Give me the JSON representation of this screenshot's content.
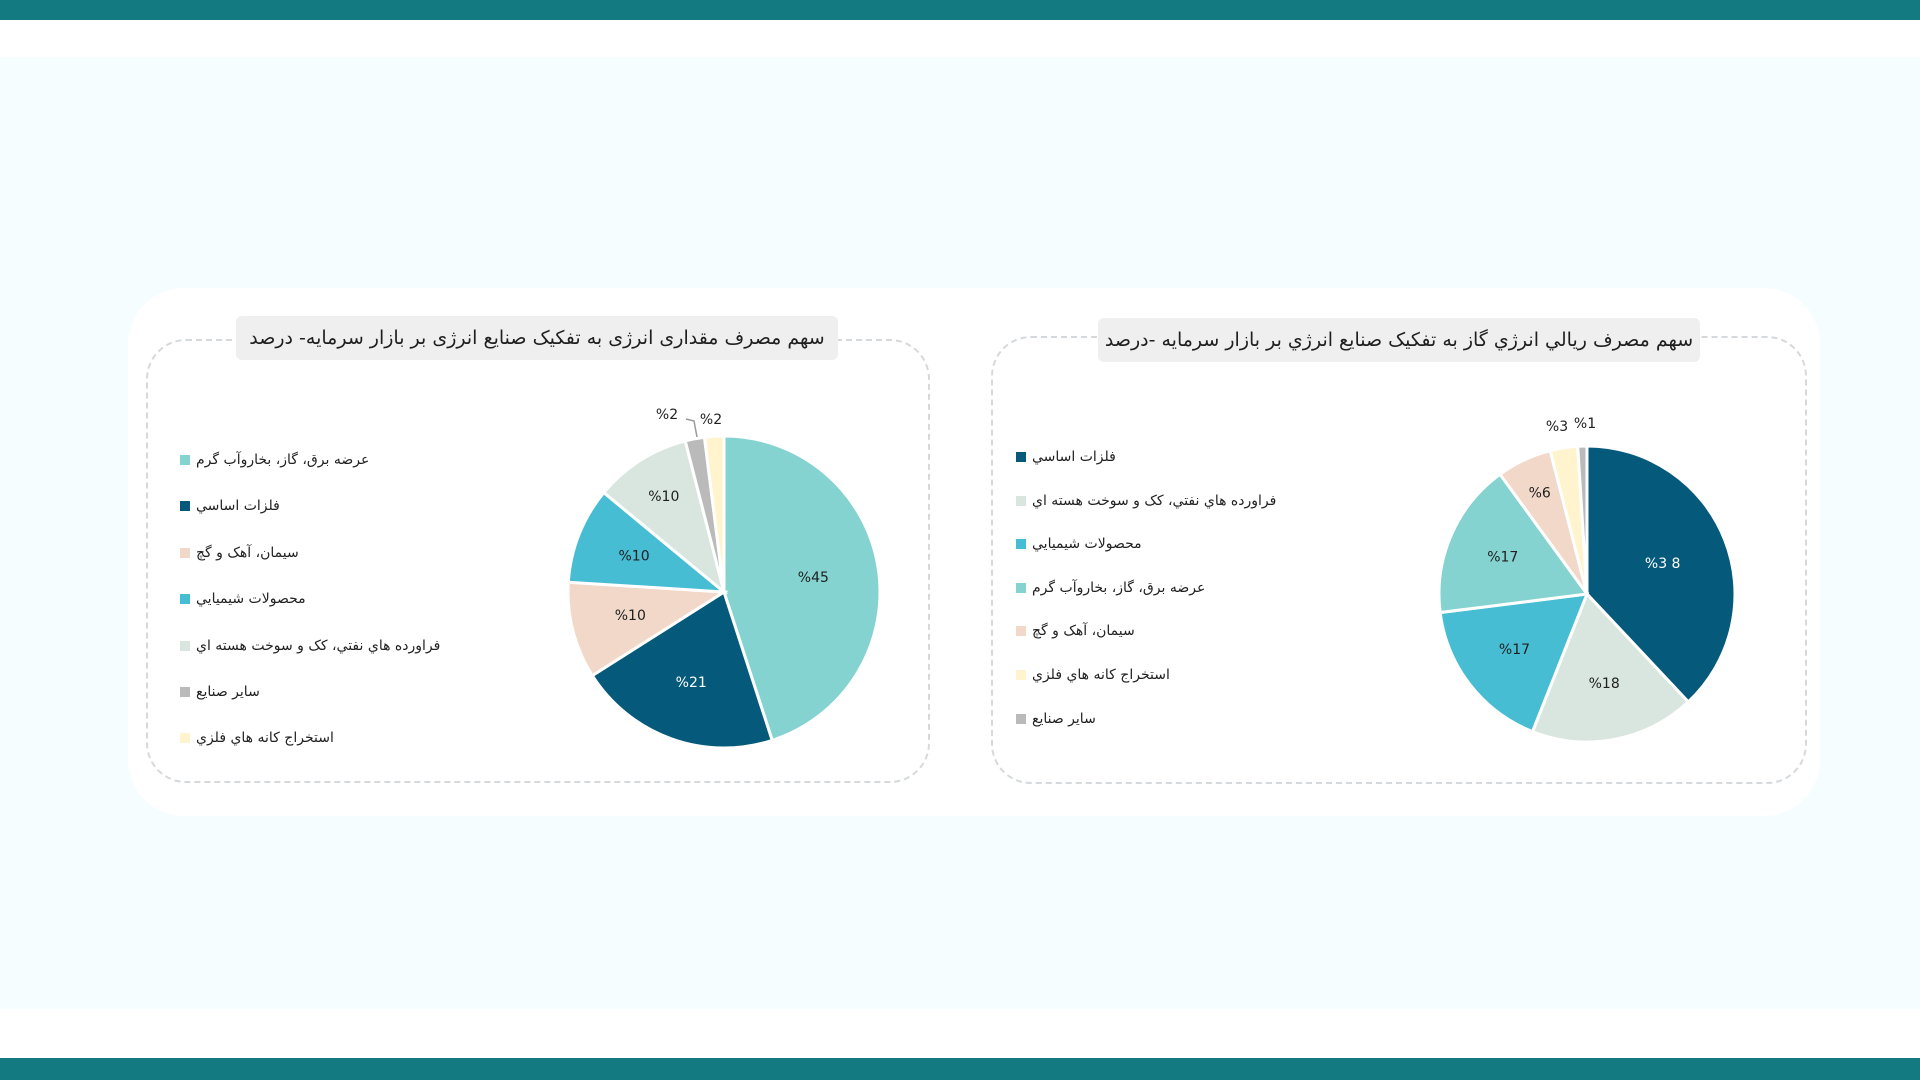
{
  "chart_data": [
    {
      "type": "pie",
      "title": "سهم مصرف مقداری انرژی به تفکیک صنایع انرژی بر بازار سرمایه- درصد",
      "legend_position": "left",
      "slices": [
        {
          "label": "عرضه برق، گاز، بخاروآب گرم",
          "value": 45,
          "display": "%45",
          "color": "#84D3D0"
        },
        {
          "label": "فلزات اساسي",
          "value": 21,
          "display": "%21",
          "color": "#055A7C"
        },
        {
          "label": "سيمان، آهک و گچ",
          "value": 10,
          "display": "%10",
          "color": "#F2D8C9"
        },
        {
          "label": "محصولات شيميايي",
          "value": 10,
          "display": "%10",
          "color": "#47BDD3"
        },
        {
          "label": "فراورده هاي نفتي، کک و سوخت هسته اي",
          "value": 10,
          "display": "%10",
          "color": "#D9E6DF"
        },
        {
          "label": "ساير صنايع",
          "value": 2,
          "display": "%2",
          "color": "#BABABA"
        },
        {
          "label": "استخراج کانه هاي فلزي",
          "value": 2,
          "display": "%2",
          "color": "#FFF4CE"
        }
      ]
    },
    {
      "type": "pie",
      "title": "سهم مصرف ريالي انرژي گاز به تفکيک صنايع انرژي بر بازار سرمايه -درصد",
      "legend_position": "left",
      "slices": [
        {
          "label": "فلزات اساسي",
          "value": 38,
          "display": "%3 8",
          "color": "#055A7C"
        },
        {
          "label": "فراورده هاي نفتي، کک و سوخت هسته اي",
          "value": 18,
          "display": "%18",
          "color": "#D9E6DF"
        },
        {
          "label": "محصولات شيميايي",
          "value": 17,
          "display": "%17",
          "color": "#47BDD3"
        },
        {
          "label": "عرضه برق، گاز، بخاروآب گرم",
          "value": 17,
          "display": "%17",
          "color": "#84D3D0"
        },
        {
          "label": "سيمان، آهک و گچ",
          "value": 6,
          "display": "%6",
          "color": "#F2D8C9"
        },
        {
          "label": "استخراج کانه هاي فلزي",
          "value": 3,
          "display": "%3",
          "color": "#FFF4CE"
        },
        {
          "label": "ساير صنايع",
          "value": 1,
          "display": "%1",
          "color": "#BABABA"
        }
      ]
    }
  ],
  "legends": [
    [
      {
        "label": "عرضه برق، گاز، بخاروآب گرم",
        "color": "#84D3D0"
      },
      {
        "label": "فلزات اساسي",
        "color": "#055A7C"
      },
      {
        "label": "سيمان، آهک و گچ",
        "color": "#F2D8C9"
      },
      {
        "label": "محصولات شيميايي",
        "color": "#47BDD3"
      },
      {
        "label": "فراورده هاي نفتي، کک و سوخت هسته اي",
        "color": "#D9E6DF"
      },
      {
        "label": "ساير صنايع",
        "color": "#BABABA"
      },
      {
        "label": "استخراج کانه هاي فلزي",
        "color": "#FFF4CE"
      }
    ],
    [
      {
        "label": "فلزات اساسي",
        "color": "#055A7C"
      },
      {
        "label": "فراورده هاي نفتي، کک و سوخت هسته اي",
        "color": "#D9E6DF"
      },
      {
        "label": "محصولات شيميايي",
        "color": "#47BDD3"
      },
      {
        "label": "عرضه برق، گاز، بخاروآب گرم",
        "color": "#84D3D0"
      },
      {
        "label": "سيمان، آهک و گچ",
        "color": "#F2D8C9"
      },
      {
        "label": "استخراج کانه هاي فلزي",
        "color": "#FFF4CE"
      },
      {
        "label": "ساير صنايع",
        "color": "#BABABA"
      }
    ]
  ],
  "theme": {
    "band_color": "#127A80",
    "background": "#f5fdfe"
  }
}
